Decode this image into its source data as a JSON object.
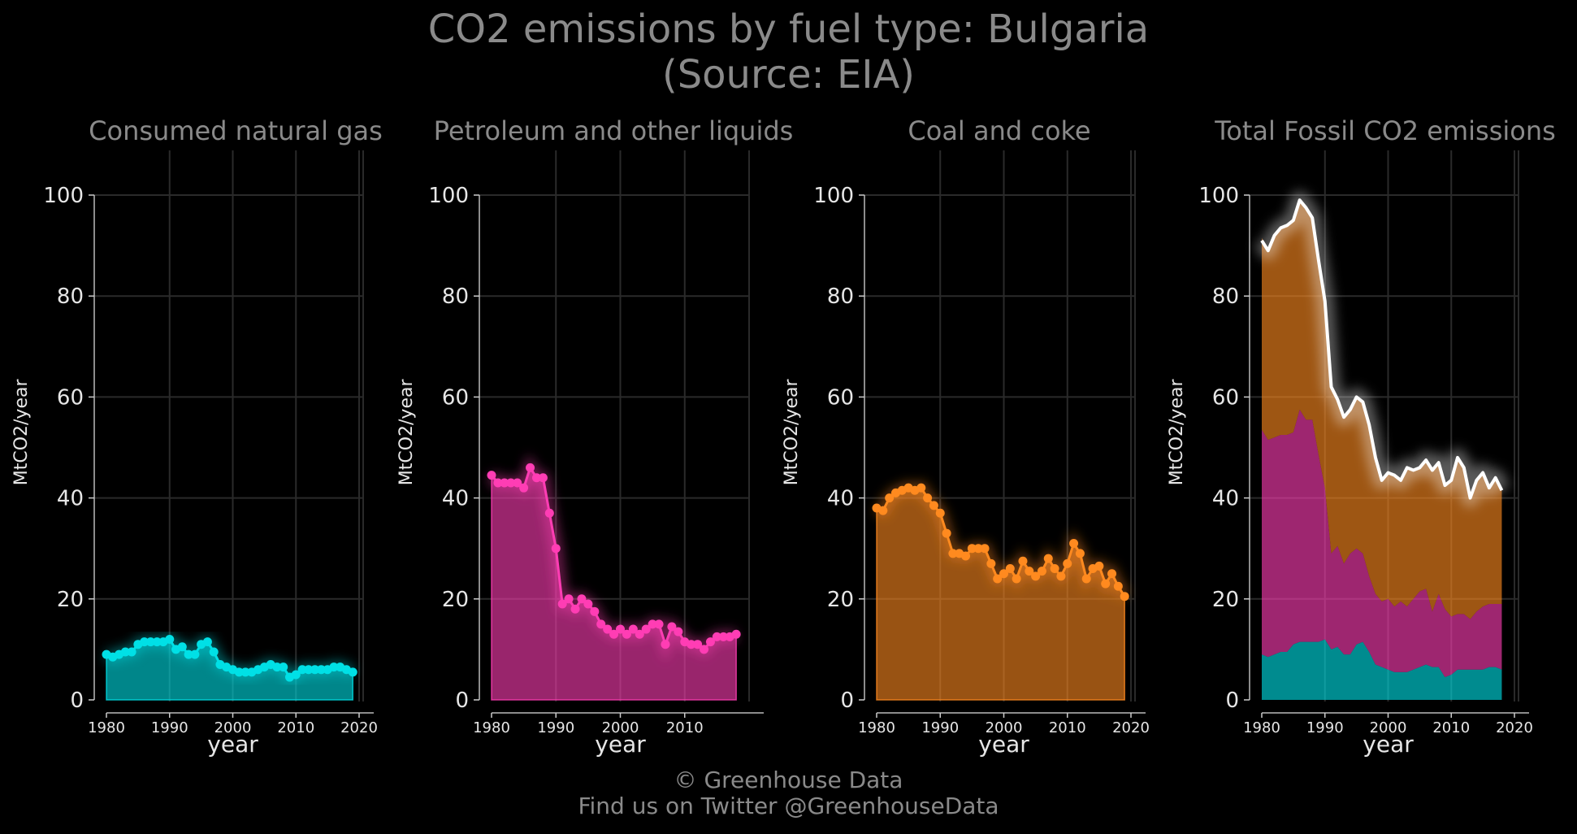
{
  "header": {
    "title": "CO2 emissions by fuel type: Bulgaria",
    "subtitle": "(Source: EIA)"
  },
  "footer": {
    "copyright": "© Greenhouse Data",
    "twitter": "Find us on Twitter @GreenhouseData"
  },
  "colors": {
    "background": "#000000",
    "gas": "#00e0e6",
    "petroleum": "#ff3db4",
    "coal": "#ff8a1f",
    "total": "#ffffff",
    "grid": "#2a2a2a",
    "text": "#8a8a8a"
  },
  "chart_data": [
    {
      "type": "area",
      "title": "Consumed natural gas",
      "xlabel": "year",
      "ylabel": "MtCO2/year",
      "xlim": [
        1980,
        2020
      ],
      "ylim": [
        0,
        100
      ],
      "xticks": [
        1980,
        1990,
        2000,
        2010,
        2020
      ],
      "yticks": [
        0,
        20,
        40,
        60,
        80,
        100
      ],
      "grid": true,
      "x": [
        1980,
        1981,
        1982,
        1983,
        1984,
        1985,
        1986,
        1987,
        1988,
        1989,
        1990,
        1991,
        1992,
        1993,
        1994,
        1995,
        1996,
        1997,
        1998,
        1999,
        2000,
        2001,
        2002,
        2003,
        2004,
        2005,
        2006,
        2007,
        2008,
        2009,
        2010,
        2011,
        2012,
        2013,
        2014,
        2015,
        2016,
        2017,
        2018,
        2019
      ],
      "series": [
        {
          "values": [
            9,
            8.5,
            9,
            9.5,
            9.5,
            11,
            11.5,
            11.5,
            11.5,
            11.5,
            12,
            10,
            10.5,
            9,
            9,
            11,
            11.5,
            9.5,
            7,
            6.5,
            6,
            5.5,
            5.5,
            5.5,
            6,
            6.5,
            7,
            6.5,
            6.5,
            4.5,
            5,
            6,
            6,
            6,
            6,
            6,
            6.5,
            6.5,
            6,
            5.5
          ]
        }
      ]
    },
    {
      "type": "area",
      "title": "Petroleum and other liquids",
      "xlabel": "year",
      "ylabel": "MtCO2/year",
      "xlim": [
        1980,
        2020
      ],
      "ylim": [
        0,
        100
      ],
      "xticks": [
        1980,
        1990,
        2000,
        2010
      ],
      "yticks": [
        0,
        20,
        40,
        60,
        80,
        100
      ],
      "grid": true,
      "x": [
        1980,
        1981,
        1982,
        1983,
        1984,
        1985,
        1986,
        1987,
        1988,
        1989,
        1990,
        1991,
        1992,
        1993,
        1994,
        1995,
        1996,
        1997,
        1998,
        1999,
        2000,
        2001,
        2002,
        2003,
        2004,
        2005,
        2006,
        2007,
        2008,
        2009,
        2010,
        2011,
        2012,
        2013,
        2014,
        2015,
        2016,
        2017,
        2018
      ],
      "series": [
        {
          "values": [
            44.5,
            43,
            43,
            43,
            43,
            42,
            46,
            44,
            44,
            37,
            30,
            19,
            20,
            18,
            20,
            19,
            17.5,
            15,
            14,
            13,
            14,
            13,
            14,
            13,
            14,
            15,
            15,
            11,
            14.5,
            13.5,
            11.5,
            11,
            11,
            10,
            11.5,
            12.5,
            12.5,
            12.5,
            13
          ]
        }
      ]
    },
    {
      "type": "area",
      "title": "Coal and coke",
      "xlabel": "year",
      "ylabel": "MtCO2/year",
      "xlim": [
        1980,
        2020
      ],
      "ylim": [
        0,
        100
      ],
      "xticks": [
        1980,
        1990,
        2000,
        2010,
        2020
      ],
      "yticks": [
        0,
        20,
        40,
        60,
        80,
        100
      ],
      "grid": true,
      "x": [
        1980,
        1981,
        1982,
        1983,
        1984,
        1985,
        1986,
        1987,
        1988,
        1989,
        1990,
        1991,
        1992,
        1993,
        1994,
        1995,
        1996,
        1997,
        1998,
        1999,
        2000,
        2001,
        2002,
        2003,
        2004,
        2005,
        2006,
        2007,
        2008,
        2009,
        2010,
        2011,
        2012,
        2013,
        2014,
        2015,
        2016,
        2017,
        2018,
        2019
      ],
      "series": [
        {
          "values": [
            38,
            37.5,
            40,
            41,
            41.5,
            42,
            41.5,
            42,
            40,
            38.5,
            37,
            33,
            29,
            29,
            28.5,
            30,
            30,
            30,
            27,
            24,
            25,
            26,
            24,
            27.5,
            25.5,
            24.5,
            25.5,
            28,
            26,
            24.5,
            27,
            31,
            29,
            24,
            26,
            26.5,
            23,
            25,
            22.5,
            20.5
          ]
        }
      ]
    },
    {
      "type": "area",
      "title": "Total Fossil CO2 emissions",
      "xlabel": "year",
      "ylabel": "MtCO2/year",
      "xlim": [
        1980,
        2020
      ],
      "ylim": [
        0,
        100
      ],
      "xticks": [
        1980,
        1990,
        2000,
        2010,
        2020
      ],
      "yticks": [
        0,
        20,
        40,
        60,
        80,
        100
      ],
      "grid": true,
      "x": [
        1980,
        1981,
        1982,
        1983,
        1984,
        1985,
        1986,
        1987,
        1988,
        1989,
        1990,
        1991,
        1992,
        1993,
        1994,
        1995,
        1996,
        1997,
        1998,
        1999,
        2000,
        2001,
        2002,
        2003,
        2004,
        2005,
        2006,
        2007,
        2008,
        2009,
        2010,
        2011,
        2012,
        2013,
        2014,
        2015,
        2016,
        2017,
        2018
      ],
      "stacked_series": [
        {
          "values": [
            9,
            8.5,
            9,
            9.5,
            9.5,
            11,
            11.5,
            11.5,
            11.5,
            11.5,
            12,
            10,
            10.5,
            9,
            9,
            11,
            11.5,
            9.5,
            7,
            6.5,
            6,
            5.5,
            5.5,
            5.5,
            6,
            6.5,
            7,
            6.5,
            6.5,
            4.5,
            5,
            6,
            6,
            6,
            6,
            6,
            6.5,
            6.5,
            6
          ]
        },
        {
          "values": [
            44.5,
            43,
            43,
            43,
            43,
            42,
            46,
            44,
            44,
            37,
            30,
            19,
            20,
            18,
            20,
            19,
            17.5,
            15,
            14,
            13,
            14,
            13,
            14,
            13,
            14,
            15,
            15,
            11,
            14.5,
            13.5,
            11.5,
            11,
            11,
            10,
            11.5,
            12.5,
            12.5,
            12.5,
            13
          ]
        },
        {
          "values": [
            38,
            37.5,
            40,
            41,
            41.5,
            42,
            41.5,
            42,
            40,
            38.5,
            37,
            33,
            29,
            29,
            28.5,
            30,
            30,
            30,
            27,
            24,
            25,
            26,
            24,
            27.5,
            25.5,
            24.5,
            25.5,
            28,
            26,
            24.5,
            27,
            31,
            29,
            24,
            26,
            26.5,
            23,
            25,
            22.5
          ]
        }
      ],
      "total_line": [
        91,
        89,
        92,
        93.5,
        94,
        95,
        99,
        97.5,
        95.5,
        87,
        79,
        62,
        59.5,
        56,
        57.5,
        60,
        59,
        54.5,
        48,
        43.5,
        45,
        44.5,
        43.5,
        46,
        45.5,
        46,
        47.5,
        45.5,
        47,
        42.5,
        43.5,
        48,
        46,
        40,
        43.5,
        45,
        42,
        44,
        41.5
      ]
    }
  ]
}
